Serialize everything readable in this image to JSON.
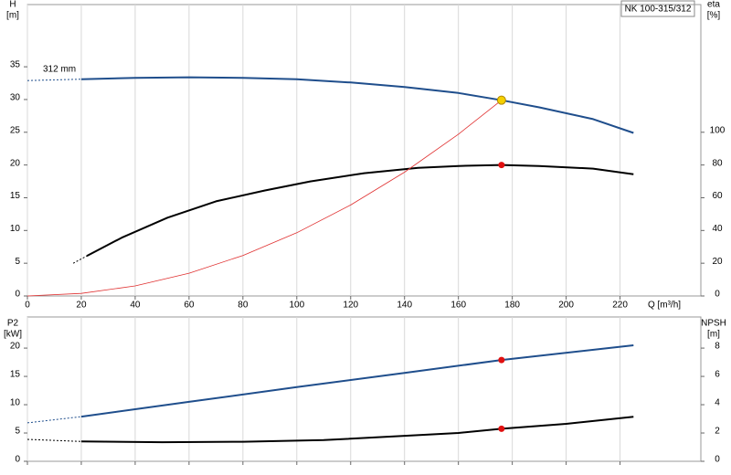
{
  "chart_data": [
    {
      "type": "line",
      "title": "NK 100-315/312",
      "ylabel": "H",
      "yunit": "[m]",
      "y2label": "eta",
      "y2unit": "[%]",
      "xlabel": "Q [m³/h]",
      "annotation": "312 mm",
      "xlim": [
        0,
        250
      ],
      "xticks": [
        0,
        20,
        40,
        60,
        80,
        100,
        120,
        140,
        160,
        180,
        200,
        220
      ],
      "ylim": [
        0,
        44.5
      ],
      "yticks": [
        0,
        5,
        10,
        15,
        20,
        25,
        30,
        35
      ],
      "y2lim": [
        0,
        178
      ],
      "y2ticks": [
        0,
        20,
        40,
        60,
        80,
        100
      ],
      "grid": true,
      "series": [
        {
          "name": "312 mm",
          "color": "#1f4e8c",
          "width": 2,
          "x": [
            20,
            40,
            60,
            80,
            100,
            120,
            140,
            160,
            176,
            190,
            210,
            225
          ],
          "values": [
            33.1,
            33.3,
            33.4,
            33.3,
            33.1,
            32.6,
            31.9,
            31.0,
            29.9,
            28.8,
            27.0,
            24.9
          ]
        },
        {
          "color": "#1f4e8c",
          "width": 1,
          "dashed": true,
          "x": [
            0,
            20
          ],
          "values": [
            32.9,
            33.1
          ]
        },
        {
          "color": "#000000",
          "width": 2,
          "axis": "y2",
          "x": [
            22,
            35,
            52,
            70,
            88,
            105,
            125,
            145,
            160,
            176,
            190,
            210,
            225
          ],
          "values": [
            24.4,
            35.6,
            47.8,
            57.8,
            64.4,
            70,
            75,
            78.3,
            79.4,
            80,
            79.4,
            77.8,
            74.4
          ]
        },
        {
          "color": "#000000",
          "width": 1,
          "dashed": true,
          "axis": "y2",
          "x": [
            17,
            22
          ],
          "values": [
            20,
            24.4
          ]
        },
        {
          "color": "#e03030",
          "width": 0.8,
          "x": [
            0,
            20,
            40,
            60,
            80,
            100,
            120,
            140,
            160,
            176
          ],
          "values": [
            0,
            0.39,
            1.54,
            3.47,
            6.18,
            9.65,
            13.9,
            18.9,
            24.7,
            29.9
          ]
        }
      ],
      "markers": [
        {
          "x": 176,
          "y": 29.9,
          "color": "#f5d000"
        },
        {
          "x": 176,
          "y": 80,
          "axis": "y2",
          "color": "#e01010"
        }
      ]
    },
    {
      "type": "line",
      "ylabel": "P2",
      "yunit": "[kW]",
      "y2label": "NPSH",
      "y2unit": "[m]",
      "ylim": [
        0,
        25.5
      ],
      "yticks": [
        0,
        5,
        10,
        15,
        20
      ],
      "y2lim": [
        0,
        10.2
      ],
      "y2ticks": [
        0,
        2,
        4,
        6,
        8
      ],
      "series": [
        {
          "color": "#1f4e8c",
          "width": 2,
          "x": [
            20,
            60,
            100,
            140,
            176,
            225
          ],
          "values": [
            7.9,
            10.5,
            13.1,
            15.6,
            17.9,
            20.5
          ]
        },
        {
          "color": "#1f4e8c",
          "width": 1,
          "dashed": true,
          "x": [
            0,
            20
          ],
          "values": [
            6.8,
            7.9
          ]
        },
        {
          "color": "#000000",
          "width": 2,
          "axis": "y2",
          "x": [
            20,
            50,
            80,
            110,
            140,
            160,
            176,
            200,
            225
          ],
          "values": [
            1.4,
            1.35,
            1.38,
            1.5,
            1.8,
            2.0,
            2.3,
            2.65,
            3.15
          ]
        },
        {
          "color": "#000000",
          "width": 1,
          "dashed": true,
          "axis": "y2",
          "x": [
            0,
            20
          ],
          "values": [
            1.55,
            1.4
          ]
        }
      ],
      "markers": [
        {
          "x": 176,
          "y": 17.9,
          "color": "#e01010"
        },
        {
          "x": 176,
          "y": 2.3,
          "axis": "y2",
          "color": "#e01010"
        }
      ]
    }
  ]
}
